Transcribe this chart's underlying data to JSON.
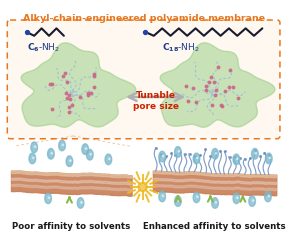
{
  "title": "Alkyl-chain-engineered polyamide membrane",
  "title_color": "#E87820",
  "arrow_text": "Tunable\npore size",
  "arrow_text_color": "#CC2200",
  "caption_left": "Poor affinity to solvents",
  "caption_right": "Enhanced affinity to solvents",
  "caption_color": "#1a1a1a",
  "bg_color": "#ffffff",
  "box_edge_color": "#E87820",
  "box_face_color": "#fef8f0",
  "green_blob_color": "#8ec87a",
  "membrane_brown": "#c8805a",
  "alkyl_dark": "#1a1a2e",
  "alkyl_dot_color": "#2244aa",
  "water_drop_color": "#7ab8cc",
  "chain_blue": "#6688bb",
  "pink_dot": "#cc6688",
  "network_blue": "#99bbdd",
  "arrow_gray": "#b0b0b0",
  "yellow_flash": "#f0b820",
  "green_arrow": "#88b848"
}
